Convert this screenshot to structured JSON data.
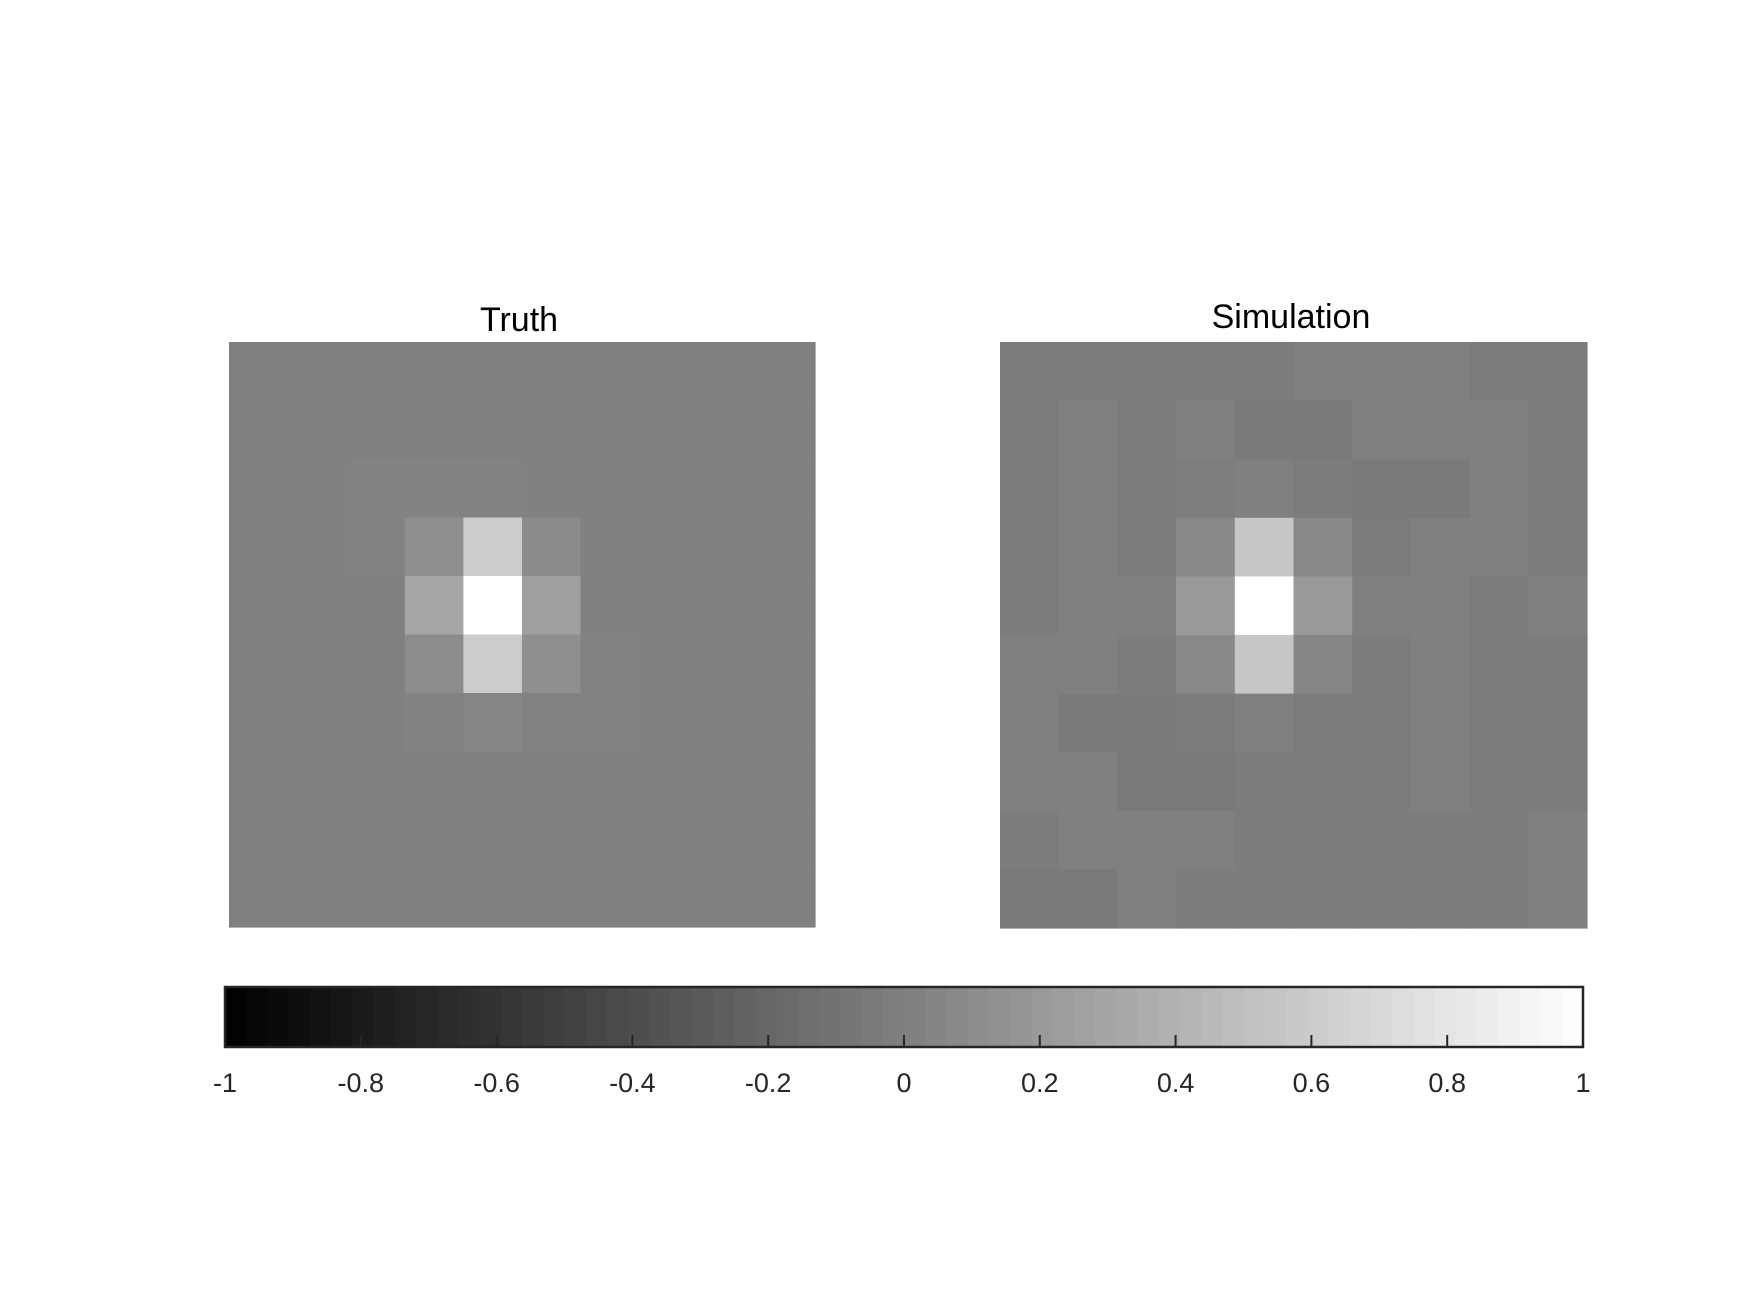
{
  "chart_data": [
    {
      "type": "heatmap",
      "title": "Truth",
      "rows": 10,
      "cols": 10,
      "clim": [
        -1,
        1
      ],
      "colormap": "gray",
      "values": [
        [
          0.0,
          0.0,
          0.0,
          0.0,
          0.0,
          0.0,
          0.0,
          0.0,
          0.0,
          0.0
        ],
        [
          0.0,
          0.0,
          0.0,
          0.0,
          0.0,
          0.0,
          0.0,
          0.0,
          0.0,
          0.0
        ],
        [
          0.0,
          0.0,
          0.02,
          0.02,
          0.03,
          0.01,
          0.0,
          0.0,
          0.0,
          0.0
        ],
        [
          0.0,
          0.0,
          0.02,
          0.12,
          0.6,
          0.09,
          0.0,
          0.0,
          0.0,
          0.0
        ],
        [
          0.0,
          0.0,
          0.0,
          0.3,
          1.0,
          0.25,
          0.0,
          0.0,
          0.0,
          0.0
        ],
        [
          0.0,
          0.0,
          0.0,
          0.1,
          0.6,
          0.12,
          0.02,
          0.0,
          0.0,
          0.0
        ],
        [
          0.0,
          0.0,
          0.0,
          0.03,
          0.05,
          0.02,
          0.02,
          0.0,
          0.0,
          0.0
        ],
        [
          0.0,
          0.0,
          0.0,
          0.0,
          0.0,
          0.0,
          0.0,
          0.0,
          0.0,
          0.0
        ],
        [
          0.0,
          0.0,
          0.0,
          0.0,
          0.0,
          0.0,
          0.0,
          0.0,
          0.0,
          0.0
        ],
        [
          0.0,
          0.0,
          0.0,
          0.0,
          0.0,
          0.0,
          0.0,
          0.0,
          0.0,
          0.0
        ]
      ]
    },
    {
      "type": "heatmap",
      "title": "Simulation",
      "rows": 10,
      "cols": 10,
      "clim": [
        -1,
        1
      ],
      "colormap": "gray",
      "values": [
        [
          -0.03,
          -0.03,
          -0.03,
          -0.03,
          -0.03,
          0.0,
          0.0,
          0.0,
          -0.03,
          -0.03
        ],
        [
          -0.03,
          0.0,
          -0.03,
          0.0,
          -0.04,
          -0.04,
          0.0,
          0.0,
          0.0,
          -0.03
        ],
        [
          -0.03,
          0.0,
          -0.03,
          -0.02,
          0.0,
          -0.03,
          -0.04,
          -0.04,
          0.0,
          -0.03
        ],
        [
          -0.03,
          0.0,
          -0.03,
          0.07,
          0.55,
          0.07,
          -0.03,
          0.0,
          0.0,
          -0.03
        ],
        [
          -0.03,
          0.0,
          0.0,
          0.2,
          1.0,
          0.2,
          0.0,
          0.0,
          -0.03,
          0.0
        ],
        [
          0.0,
          0.0,
          -0.03,
          0.07,
          0.55,
          0.05,
          -0.03,
          0.0,
          -0.03,
          -0.03
        ],
        [
          0.0,
          -0.04,
          -0.04,
          -0.03,
          0.0,
          -0.03,
          -0.03,
          0.0,
          -0.03,
          -0.03
        ],
        [
          0.0,
          0.0,
          -0.04,
          -0.04,
          -0.03,
          -0.03,
          -0.03,
          0.0,
          -0.03,
          -0.03
        ],
        [
          -0.03,
          0.0,
          0.0,
          0.0,
          -0.03,
          -0.03,
          -0.03,
          -0.03,
          -0.03,
          0.0
        ],
        [
          -0.04,
          -0.04,
          0.0,
          -0.03,
          -0.03,
          -0.03,
          -0.03,
          -0.03,
          -0.03,
          0.0
        ]
      ]
    }
  ],
  "colorbar": {
    "orientation": "horizontal",
    "range": [
      -1,
      1
    ],
    "colormap": "gray",
    "ticks": [
      -1,
      -0.8,
      -0.6,
      -0.4,
      -0.2,
      0,
      0.2,
      0.4,
      0.6,
      0.8,
      1
    ],
    "tick_labels": [
      "-1",
      "-0.8",
      "-0.6",
      "-0.4",
      "-0.2",
      "0",
      "0.2",
      "0.4",
      "0.6",
      "0.8",
      "1"
    ]
  }
}
